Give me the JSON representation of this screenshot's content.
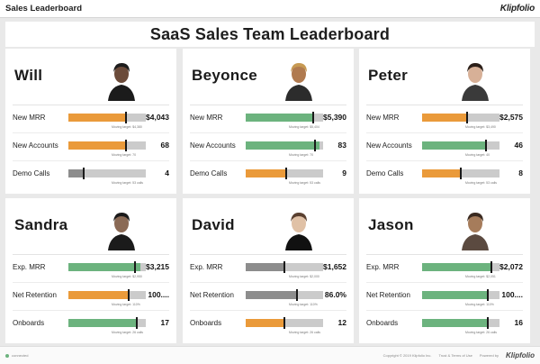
{
  "app": {
    "title": "Sales Leaderboard",
    "brand": "Klipfolio"
  },
  "dashboard": {
    "title": "SaaS Sales Team Leaderboard"
  },
  "cards": [
    {
      "name": "Will",
      "metrics": [
        {
          "label": "New MRR",
          "value": "$4,043",
          "target": "Moving target: $4,380",
          "progress": 0.74,
          "marker": 0.74,
          "color": "orange"
        },
        {
          "label": "New Accounts",
          "value": "68",
          "target": "Moving target: 70",
          "progress": 0.74,
          "marker": 0.74,
          "color": "orange"
        },
        {
          "label": "Demo Calls",
          "value": "4",
          "target": "Moving target: 53 calls",
          "progress": 0.2,
          "marker": 0.2,
          "color": "gray"
        }
      ]
    },
    {
      "name": "Beyonce",
      "metrics": [
        {
          "label": "New MRR",
          "value": "$5,390",
          "target": "Moving target: $5,404",
          "progress": 0.87,
          "marker": 0.87,
          "color": "green"
        },
        {
          "label": "New Accounts",
          "value": "83",
          "target": "Moving target: 70",
          "progress": 0.95,
          "marker": 0.9,
          "color": "green"
        },
        {
          "label": "Demo Calls",
          "value": "9",
          "target": "Moving target: 53 calls",
          "progress": 0.52,
          "marker": 0.52,
          "color": "orange"
        }
      ]
    },
    {
      "name": "Peter",
      "metrics": [
        {
          "label": "New MRR",
          "value": "$2,575",
          "target": "Moving target: $3,490",
          "progress": 0.58,
          "marker": 0.58,
          "color": "orange"
        },
        {
          "label": "New Accounts",
          "value": "46",
          "target": "Moving target: 40",
          "progress": 0.83,
          "marker": 0.83,
          "color": "green"
        },
        {
          "label": "Demo Calls",
          "value": "8",
          "target": "Moving target: 53 calls",
          "progress": 0.5,
          "marker": 0.5,
          "color": "orange"
        }
      ]
    },
    {
      "name": "Sandra",
      "metrics": [
        {
          "label": "Exp. MRR",
          "value": "$3,215",
          "target": "Moving target: $2,950",
          "progress": 0.93,
          "marker": 0.86,
          "color": "green"
        },
        {
          "label": "Net Retention",
          "value": "100....",
          "target": "Moving target: 110%",
          "progress": 0.78,
          "marker": 0.78,
          "color": "orange"
        },
        {
          "label": "Onboards",
          "value": "17",
          "target": "Moving target: 26 calls",
          "progress": 0.88,
          "marker": 0.88,
          "color": "green"
        }
      ]
    },
    {
      "name": "David",
      "metrics": [
        {
          "label": "Exp. MRR",
          "value": "$1,652",
          "target": "Moving target: $2,000",
          "progress": 0.5,
          "marker": 0.5,
          "color": "gray"
        },
        {
          "label": "Net Retention",
          "value": "86.0%",
          "target": "Moving target: 110%",
          "progress": 0.66,
          "marker": 0.66,
          "color": "gray"
        },
        {
          "label": "Onboards",
          "value": "12",
          "target": "Moving target: 26 calls",
          "progress": 0.5,
          "marker": 0.5,
          "color": "orange"
        }
      ]
    },
    {
      "name": "Jason",
      "metrics": [
        {
          "label": "Exp. MRR",
          "value": "$2,072",
          "target": "Moving target: $2,051",
          "progress": 0.9,
          "marker": 0.9,
          "color": "green"
        },
        {
          "label": "Net Retention",
          "value": "100....",
          "target": "Moving target: 110%",
          "progress": 0.85,
          "marker": 0.85,
          "color": "green"
        },
        {
          "label": "Onboards",
          "value": "16",
          "target": "Moving target: 26 calls",
          "progress": 0.85,
          "marker": 0.85,
          "color": "green"
        }
      ]
    }
  ],
  "footer": {
    "status": "connected",
    "copyright": "Copyright © 2019 Klipfolio Inc.",
    "terms": "Trust & Terms of Use",
    "powered_by": "Powered by",
    "brand": "Klipfolio"
  },
  "colors": {
    "orange": "#ea9a3a",
    "green": "#6cb37e",
    "gray": "#8d8d8d"
  }
}
